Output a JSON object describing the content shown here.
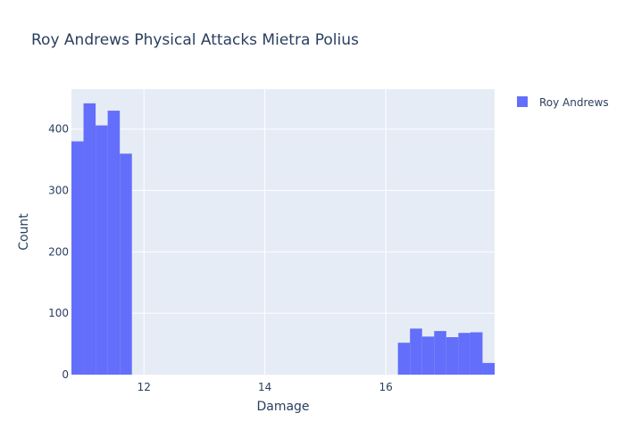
{
  "chart_data": {
    "type": "bar",
    "title": "Roy Andrews Physical Attacks Mietra Polius",
    "xlabel": "Damage",
    "ylabel": "Count",
    "xlim": [
      10.8,
      17.8
    ],
    "ylim": [
      0,
      465
    ],
    "x_ticks": [
      12,
      14,
      16
    ],
    "y_ticks": [
      0,
      100,
      200,
      300,
      400
    ],
    "bin_width": 0.2,
    "grid": true,
    "legend_position": "top-right",
    "colors": {
      "bar": "#636efa",
      "plot_bg": "#e5ecf6",
      "grid": "#ffffff",
      "text": "#2a3f5f"
    },
    "series": [
      {
        "name": "Roy Andrews",
        "bins": [
          {
            "x0": 10.8,
            "x1": 11.0,
            "count": 380
          },
          {
            "x0": 11.0,
            "x1": 11.2,
            "count": 442
          },
          {
            "x0": 11.2,
            "x1": 11.4,
            "count": 406
          },
          {
            "x0": 11.4,
            "x1": 11.6,
            "count": 430
          },
          {
            "x0": 11.6,
            "x1": 11.8,
            "count": 360
          },
          {
            "x0": 16.2,
            "x1": 16.4,
            "count": 52
          },
          {
            "x0": 16.4,
            "x1": 16.6,
            "count": 75
          },
          {
            "x0": 16.6,
            "x1": 16.8,
            "count": 62
          },
          {
            "x0": 16.8,
            "x1": 17.0,
            "count": 71
          },
          {
            "x0": 17.0,
            "x1": 17.2,
            "count": 61
          },
          {
            "x0": 17.2,
            "x1": 17.4,
            "count": 68
          },
          {
            "x0": 17.4,
            "x1": 17.6,
            "count": 69
          },
          {
            "x0": 17.6,
            "x1": 17.8,
            "count": 19
          }
        ]
      }
    ]
  }
}
